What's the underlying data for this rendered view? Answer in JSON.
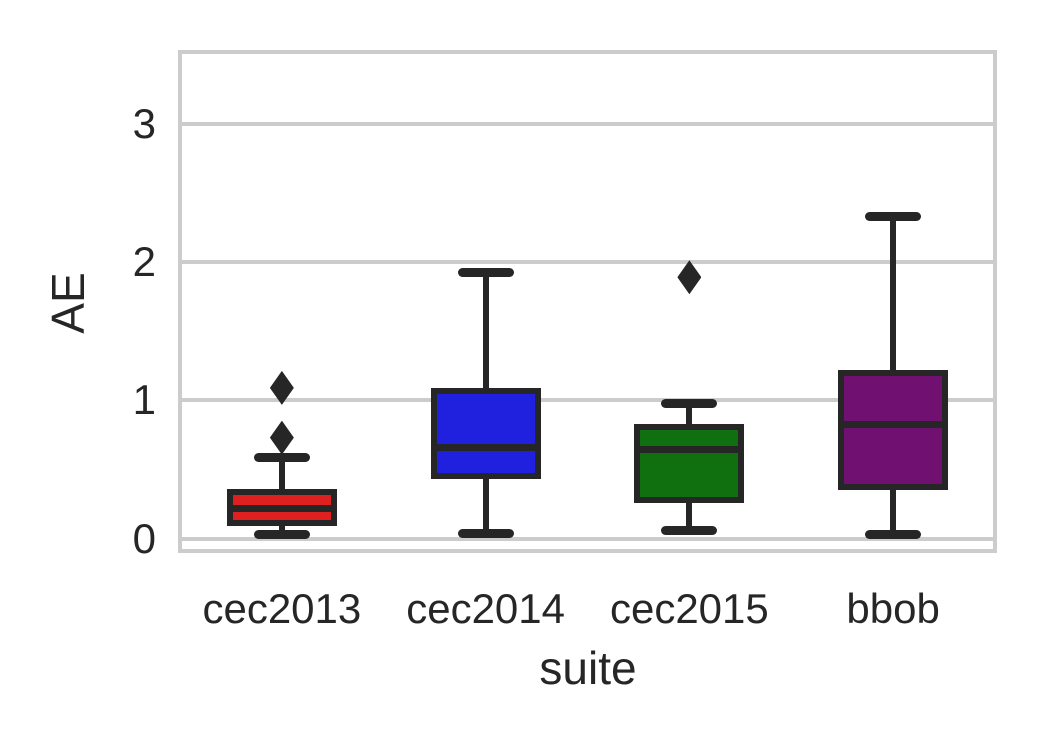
{
  "figure": {
    "background": "#ffffff"
  },
  "chart_data": {
    "type": "boxplot",
    "title": "",
    "xlabel": "suite",
    "ylabel": "AE",
    "categories": [
      "cec2013",
      "cec2014",
      "cec2015",
      "bbob"
    ],
    "yticks": [
      0,
      1,
      2,
      3
    ],
    "yticklabels": [
      "0",
      "1",
      "2",
      "3"
    ],
    "ylim": [
      -0.09,
      3.52
    ],
    "grid": true,
    "legend": false,
    "series": [
      {
        "name": "cec2013",
        "color": "#df2020",
        "whislo": 0.03,
        "q1": 0.11,
        "med": 0.22,
        "q3": 0.34,
        "whishi": 0.59,
        "outliers": [
          0.73,
          1.09
        ]
      },
      {
        "name": "cec2014",
        "color": "#2020df",
        "whislo": 0.04,
        "q1": 0.45,
        "med": 0.66,
        "q3": 1.07,
        "whishi": 1.93,
        "outliers": []
      },
      {
        "name": "cec2015",
        "color": "#107010",
        "whislo": 0.06,
        "q1": 0.28,
        "med": 0.65,
        "q3": 0.81,
        "whishi": 0.98,
        "outliers": [
          1.89
        ]
      },
      {
        "name": "bbob",
        "color": "#701070",
        "whislo": 0.03,
        "q1": 0.37,
        "med": 0.83,
        "q3": 1.2,
        "whishi": 2.33,
        "outliers": []
      }
    ],
    "colors": {
      "line": "#262626",
      "grid": "#cccccc",
      "text": "#262626"
    }
  }
}
